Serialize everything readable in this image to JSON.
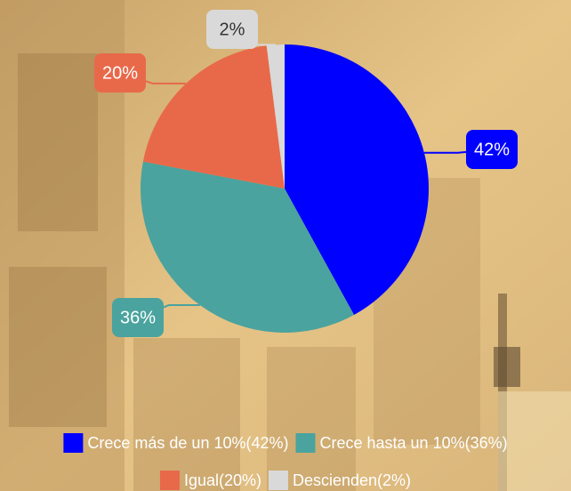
{
  "chart_data": {
    "type": "pie",
    "categories": [
      "Crece más de un 10%(42%)",
      "Crece hasta un 10%(36%)",
      "Igual(20%)",
      "Descienden(2%)"
    ],
    "values": [
      42,
      36,
      20,
      2
    ],
    "value_labels": [
      "42%",
      "36%",
      "20%",
      "2%"
    ],
    "colors": [
      "#0000ff",
      "#4aa39e",
      "#e8694a",
      "#d9d9d9"
    ],
    "legend": "bottom"
  }
}
